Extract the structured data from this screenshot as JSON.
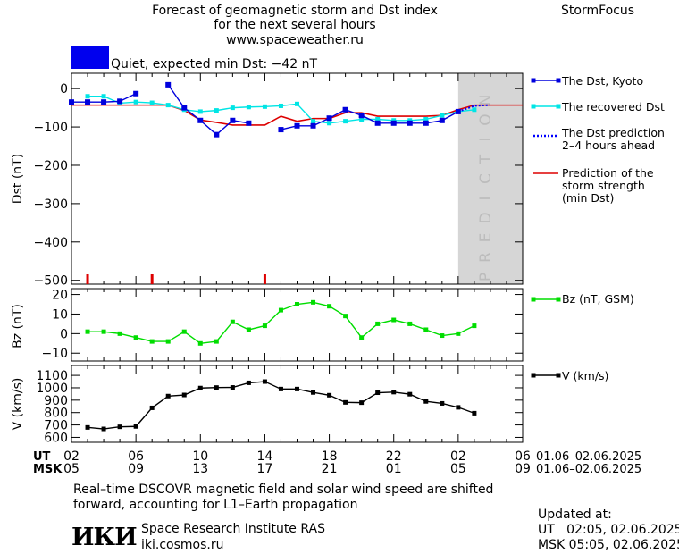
{
  "header": {
    "title_lines": [
      "Forecast of geomagnetic storm and Dst index",
      "for the next several hours",
      "www.spaceweather.ru"
    ],
    "brand": "StormFocus",
    "status_text": "Quiet, expected min Dst: −42 nT",
    "status_color": "#0000ee"
  },
  "legend": {
    "dst_kyoto": "The Dst, Kyoto",
    "dst_recovered": "The recovered Dst",
    "dst_prediction": [
      "The Dst prediction",
      "2–4 hours ahead"
    ],
    "storm_strength": [
      "Prediction of the",
      "storm strength",
      "(min Dst)"
    ],
    "bz": "Bz (nT, GSM)",
    "v": "V (km/s)"
  },
  "colors": {
    "kyoto": "#0000dd",
    "recovered": "#00e5e5",
    "prediction_dotted": "#0000ff",
    "strength": "#dd0000",
    "bz": "#00dd00",
    "v": "#000000",
    "prediction_band": "#d6d6d6",
    "prediction_text": "#bcbcbc"
  },
  "prediction_band_label": "PREDICTION",
  "time_axis": {
    "ut_label": "UT",
    "msk_label": "MSK",
    "ut_ticks": [
      "02",
      "06",
      "10",
      "14",
      "18",
      "22",
      "02",
      "06"
    ],
    "msk_ticks": [
      "05",
      "09",
      "13",
      "17",
      "21",
      "01",
      "05",
      "09"
    ],
    "ut_range": "01.06–02.06.2025",
    "msk_range": "01.06–02.06.2025"
  },
  "chart_data": [
    {
      "type": "line",
      "ylabel": "Dst (nT)",
      "xlim": [
        2,
        30
      ],
      "ylim": [
        -510,
        40
      ],
      "yticks": [
        0,
        -100,
        -200,
        -300,
        -400,
        -500
      ],
      "prediction_start_hour": 26,
      "series": [
        {
          "name": "The Dst, Kyoto",
          "segments": [
            {
              "x": [
                2,
                3,
                4,
                5,
                6
              ],
              "y": [
                -35,
                -35,
                -35,
                -33,
                -13
              ]
            },
            {
              "x": [
                8,
                9,
                10,
                11,
                12,
                13
              ],
              "y": [
                10,
                -50,
                -83,
                -120,
                -83,
                -90
              ]
            },
            {
              "x": [
                15,
                16,
                17,
                18,
                19,
                20,
                21,
                22,
                23,
                24,
                25,
                26
              ],
              "y": [
                -107,
                -97,
                -97,
                -77,
                -55,
                -70,
                -90,
                -90,
                -90,
                -90,
                -83,
                -60
              ]
            }
          ]
        },
        {
          "name": "The recovered Dst",
          "x": [
            3,
            4,
            5,
            6,
            7,
            8,
            9,
            10,
            11,
            12,
            13,
            14,
            15,
            16,
            17,
            18,
            19,
            20,
            21,
            22,
            23,
            24,
            25,
            26,
            27
          ],
          "y": [
            -20,
            -20,
            -38,
            -35,
            -37,
            -43,
            -55,
            -60,
            -57,
            -50,
            -48,
            -47,
            -45,
            -40,
            -85,
            -90,
            -85,
            -80,
            -80,
            -83,
            -83,
            -80,
            -70,
            -60,
            -55
          ]
        },
        {
          "name": "The Dst prediction 2–4 hours ahead",
          "x": [
            26,
            27,
            28
          ],
          "y": [
            -60,
            -45,
            -43
          ]
        },
        {
          "name": "Prediction of the storm strength (min Dst)",
          "x": [
            2,
            4,
            6,
            8,
            9,
            10,
            11,
            12,
            13,
            14,
            15,
            16,
            17,
            18,
            19,
            20,
            21,
            22,
            23,
            24,
            25,
            26,
            27,
            28,
            30
          ],
          "y": [
            -43,
            -43,
            -43,
            -43,
            -57,
            -82,
            -88,
            -95,
            -95,
            -95,
            -72,
            -85,
            -78,
            -78,
            -63,
            -63,
            -72,
            -72,
            -72,
            -72,
            -70,
            -55,
            -43,
            -43,
            -43
          ]
        }
      ],
      "storm_markers_x": [
        3,
        7,
        14
      ]
    },
    {
      "type": "line",
      "ylabel": "Bz (nT)",
      "xlim": [
        2,
        30
      ],
      "ylim": [
        -14,
        23
      ],
      "yticks": [
        -10,
        0,
        10,
        20
      ],
      "series": [
        {
          "name": "Bz (nT, GSM)",
          "x": [
            3,
            4,
            5,
            6,
            7,
            8,
            9,
            10,
            11,
            12,
            13,
            14,
            15,
            16,
            17,
            18,
            19,
            20,
            21,
            22,
            23,
            24,
            25,
            26,
            27
          ],
          "y": [
            1,
            1,
            0,
            -2,
            -4,
            -4,
            1,
            -5,
            -4,
            6,
            2,
            4,
            12,
            15,
            16,
            14,
            9,
            -2,
            5,
            7,
            5,
            2,
            -1,
            0,
            4
          ]
        }
      ]
    },
    {
      "type": "line",
      "ylabel": "V (km/s)",
      "xlim": [
        2,
        30
      ],
      "ylim": [
        560,
        1180
      ],
      "yticks": [
        600,
        700,
        800,
        900,
        1000,
        1100
      ],
      "series": [
        {
          "name": "V (km/s)",
          "x": [
            3,
            4,
            5,
            6,
            7,
            8,
            9,
            10,
            11,
            12,
            13,
            14,
            15,
            16,
            17,
            18,
            19,
            20,
            21,
            22,
            23,
            24,
            25,
            26,
            27
          ],
          "y": [
            680,
            668,
            685,
            688,
            838,
            933,
            942,
            998,
            1002,
            1003,
            1040,
            1050,
            990,
            990,
            962,
            940,
            882,
            880,
            960,
            965,
            948,
            890,
            874,
            842,
            795
          ]
        }
      ]
    }
  ],
  "footer": {
    "note_lines": [
      "Real–time DSCOVR magnetic field and solar wind speed are shifted",
      "forward, accounting for L1–Earth propagation"
    ],
    "logo_text": "ИКИ",
    "institute": "Space Research Institute RAS",
    "site": "iki.cosmos.ru",
    "updated_label": "Updated at:",
    "updated_ut": "UT   02:05, 02.06.2025",
    "updated_msk": "MSK 05:05, 02.06.2025"
  }
}
